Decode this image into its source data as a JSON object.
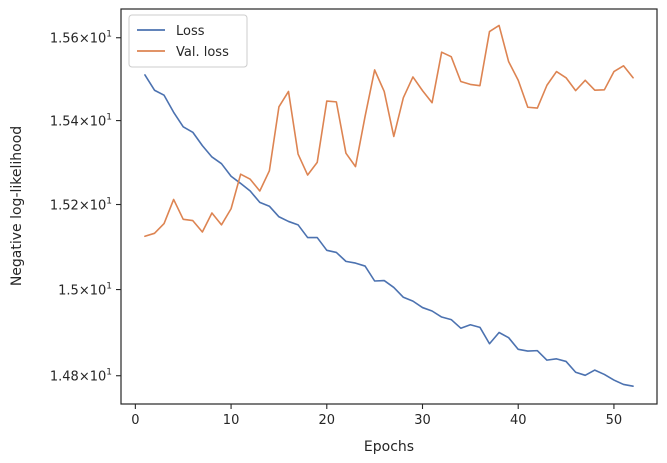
{
  "chart_data": {
    "type": "line",
    "title": "",
    "xlabel": "Epochs",
    "ylabel": "Negative log-likelihood",
    "xlim": [
      -1.5,
      54.5
    ],
    "ylim": [
      14.735,
      15.67
    ],
    "x_ticks": [
      {
        "value": 0,
        "label": "0"
      },
      {
        "value": 10,
        "label": "10"
      },
      {
        "value": 20,
        "label": "20"
      },
      {
        "value": 30,
        "label": "30"
      },
      {
        "value": 40,
        "label": "40"
      },
      {
        "value": 50,
        "label": "50"
      }
    ],
    "y_ticks": [
      {
        "value": 14.8,
        "mantissa": "1.48",
        "exponent": "1"
      },
      {
        "value": 15.0,
        "mantissa": "1.5",
        "exponent": "1"
      },
      {
        "value": 15.2,
        "mantissa": "1.52",
        "exponent": "1"
      },
      {
        "value": 15.4,
        "mantissa": "1.54",
        "exponent": "1"
      },
      {
        "value": 15.6,
        "mantissa": "1.56",
        "exponent": "1"
      }
    ],
    "y_scale": "log",
    "grid": false,
    "legend_position": "top-left",
    "x": [
      1,
      2,
      3,
      4,
      5,
      6,
      7,
      8,
      9,
      10,
      11,
      12,
      13,
      14,
      15,
      16,
      17,
      18,
      19,
      20,
      21,
      22,
      23,
      24,
      25,
      26,
      27,
      28,
      29,
      30,
      31,
      32,
      33,
      34,
      35,
      36,
      37,
      38,
      39,
      40,
      41,
      42,
      43,
      44,
      45,
      46,
      47,
      48,
      49,
      50,
      51,
      52
    ],
    "series": [
      {
        "name": "Loss",
        "color": "#4c72b0",
        "values": [
          15.51,
          15.473,
          15.461,
          15.42,
          15.385,
          15.372,
          15.34,
          15.313,
          15.297,
          15.267,
          15.25,
          15.232,
          15.205,
          15.196,
          15.171,
          15.16,
          15.152,
          15.122,
          15.122,
          15.092,
          15.087,
          15.066,
          15.062,
          15.055,
          15.02,
          15.021,
          15.005,
          14.982,
          14.973,
          14.958,
          14.95,
          14.936,
          14.93,
          14.91,
          14.918,
          14.912,
          14.874,
          14.9,
          14.888,
          14.861,
          14.857,
          14.858,
          14.836,
          14.839,
          14.833,
          14.808,
          14.801,
          14.813,
          14.803,
          14.79,
          14.78,
          14.776
        ]
      },
      {
        "name": "Val. loss",
        "color": "#dd8452",
        "values": [
          15.125,
          15.132,
          15.155,
          15.212,
          15.165,
          15.162,
          15.135,
          15.18,
          15.152,
          15.19,
          15.272,
          15.26,
          15.232,
          15.28,
          15.433,
          15.47,
          15.32,
          15.27,
          15.3,
          15.447,
          15.445,
          15.322,
          15.29,
          15.41,
          15.522,
          15.47,
          15.362,
          15.455,
          15.505,
          15.472,
          15.443,
          15.565,
          15.554,
          15.494,
          15.487,
          15.484,
          15.615,
          15.63,
          15.542,
          15.497,
          15.432,
          15.43,
          15.485,
          15.518,
          15.503,
          15.472,
          15.497,
          15.473,
          15.474,
          15.518,
          15.532,
          15.503
        ]
      }
    ]
  }
}
